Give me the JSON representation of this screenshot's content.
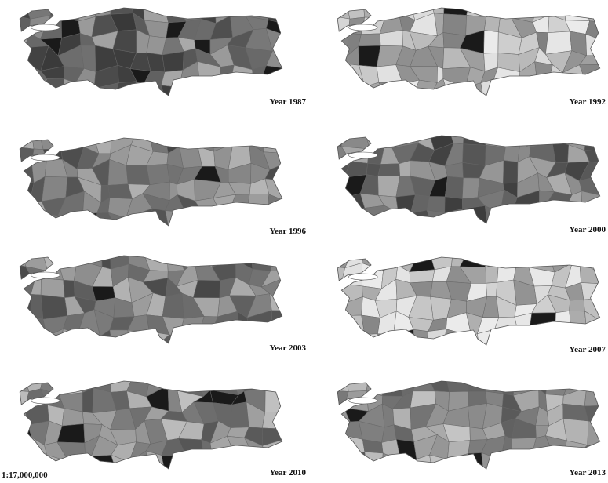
{
  "maps": [
    {
      "label": "Year 1987"
    },
    {
      "label": "Year 1992"
    },
    {
      "label": "Year 1996"
    },
    {
      "label": "Year 2000"
    },
    {
      "label": "Year 2003"
    },
    {
      "label": "Year 2007"
    },
    {
      "label": "Year 2010"
    },
    {
      "label": "Year 2013"
    }
  ],
  "scale": "1:17,000,000"
}
